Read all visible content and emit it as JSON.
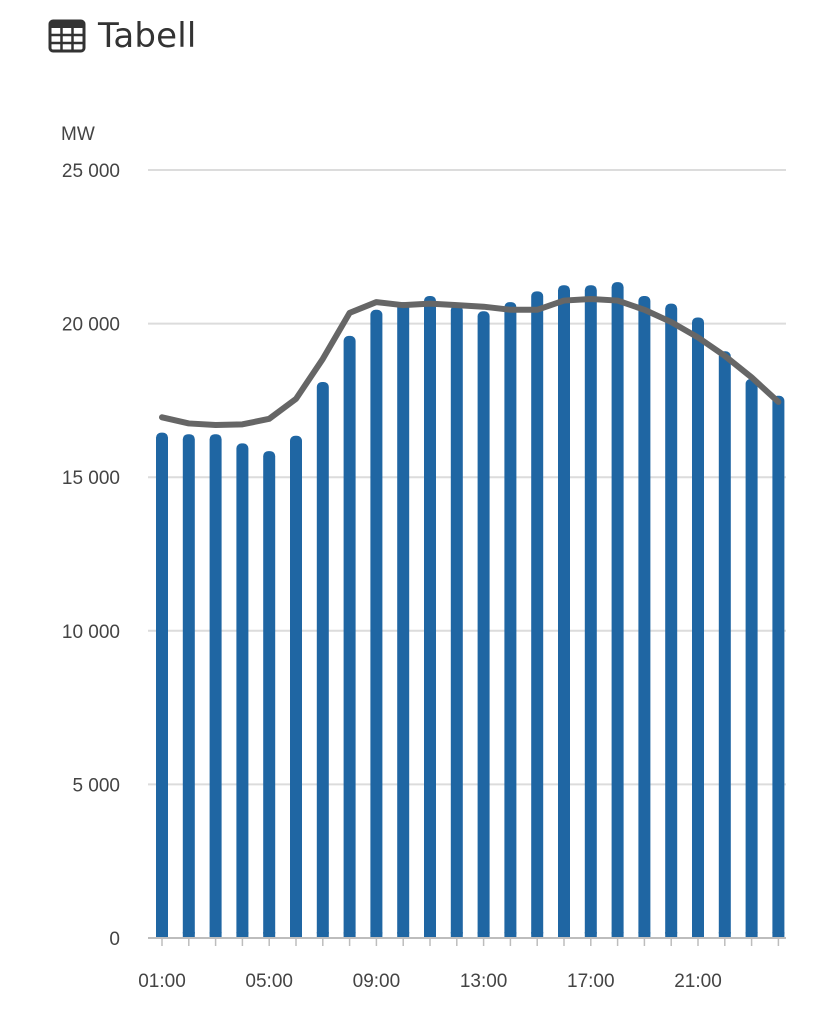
{
  "header": {
    "title": "Tabell",
    "icon": "table-icon"
  },
  "colors": {
    "bar": "#1f66a3",
    "line": "#666666",
    "grid": "#dcdcdc",
    "text": "#444444"
  },
  "chart_data": {
    "type": "bar",
    "title": "",
    "unit_label": "MW",
    "ylim": [
      0,
      25000
    ],
    "yticks": [
      0,
      5000,
      10000,
      15000,
      20000,
      25000
    ],
    "ytick_labels": [
      "0",
      "5 000",
      "10 000",
      "15 000",
      "20 000",
      "25 000"
    ],
    "grid": true,
    "categories": [
      "01:00",
      "02:00",
      "03:00",
      "04:00",
      "05:00",
      "06:00",
      "07:00",
      "08:00",
      "09:00",
      "10:00",
      "11:00",
      "12:00",
      "13:00",
      "14:00",
      "15:00",
      "16:00",
      "17:00",
      "18:00",
      "19:00",
      "20:00",
      "21:00",
      "22:00",
      "23:00",
      "24:00"
    ],
    "xtick_labels_shown": [
      "01:00",
      "05:00",
      "09:00",
      "13:00",
      "17:00",
      "21:00"
    ],
    "series": [
      {
        "type": "bar",
        "values": [
          16450,
          16400,
          16400,
          16100,
          15850,
          16350,
          18100,
          19600,
          20450,
          20700,
          20900,
          20600,
          20400,
          20700,
          21050,
          21250,
          21250,
          21350,
          20900,
          20650,
          20200,
          19100,
          18200,
          17650
        ]
      },
      {
        "type": "line",
        "values": [
          16950,
          16750,
          16700,
          16720,
          16900,
          17550,
          18850,
          20350,
          20700,
          20600,
          20650,
          20600,
          20550,
          20450,
          20450,
          20750,
          20800,
          20750,
          20450,
          20050,
          19550,
          18950,
          18250,
          17450
        ]
      }
    ]
  }
}
